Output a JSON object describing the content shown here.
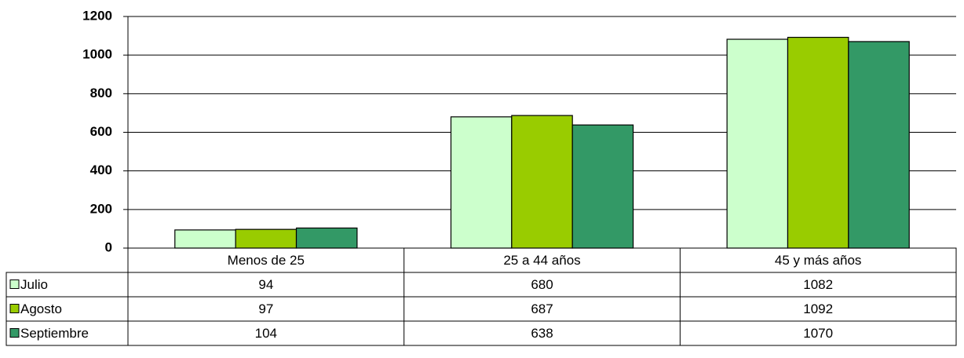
{
  "chart_data": {
    "type": "bar",
    "categories": [
      "Menos de 25",
      "25 a 44 años",
      "45 y más años"
    ],
    "series": [
      {
        "name": "Julio",
        "color": "#ccffcc",
        "values": [
          94,
          680,
          1082
        ]
      },
      {
        "name": "Agosto",
        "color": "#99cc00",
        "values": [
          97,
          687,
          1092
        ]
      },
      {
        "name": "Septiembre",
        "color": "#339966",
        "values": [
          104,
          638,
          1070
        ]
      }
    ],
    "ylim": [
      0,
      1200
    ],
    "yticks": [
      0,
      200,
      400,
      600,
      800,
      1000,
      1200
    ],
    "grid": true
  }
}
